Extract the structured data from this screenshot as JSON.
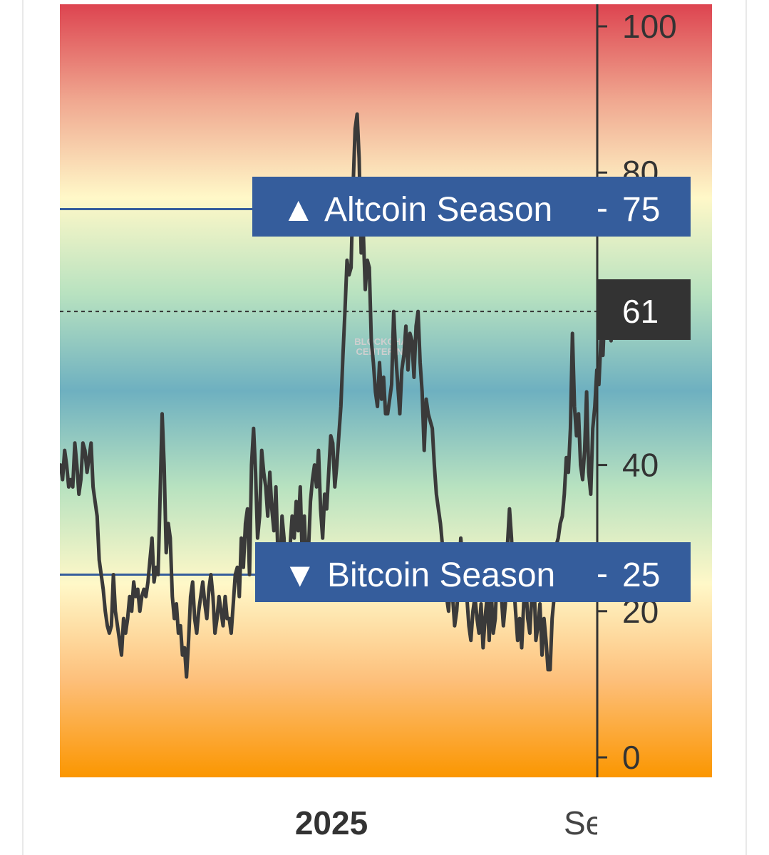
{
  "chart_data": {
    "type": "line",
    "title": "",
    "xlabel": "",
    "ylabel": "",
    "ylim": [
      0,
      100
    ],
    "y_ticks": [
      0,
      20,
      40,
      80,
      100
    ],
    "x_tick_labels": [
      {
        "label": "2025",
        "bold": true
      },
      {
        "label": "Se",
        "bold": false
      }
    ],
    "grid": false,
    "current_value": 61,
    "watermark": [
      "BLOCKCHAIN",
      "CENTER.NET"
    ],
    "thresholds": [
      {
        "name": "Altcoin Season",
        "value": 75,
        "symbol": "▲",
        "separator": "-"
      },
      {
        "name": "Bitcoin Season",
        "value": 25,
        "symbol": "▼",
        "separator": "-"
      }
    ],
    "background_gradient": [
      "#dd4450",
      "#f0a890",
      "#fff8c8",
      "#b8e2c0",
      "#6eb0c0",
      "#b8e2c0",
      "#fff8c8",
      "#fdbf7a",
      "#fb9600"
    ],
    "colors": {
      "line": "#3a3a3a",
      "threshold": "#355d9c",
      "current_badge": "#333333",
      "axis": "#333333"
    },
    "series": [
      {
        "values": [
          40,
          38,
          42,
          40,
          37,
          38,
          37,
          43,
          40,
          36,
          38,
          43,
          42,
          39,
          41,
          43,
          37,
          35,
          33,
          27,
          25,
          23,
          20,
          18,
          17,
          18,
          25,
          20,
          18,
          16,
          14,
          19,
          17,
          19,
          22,
          20,
          24,
          22,
          23,
          20,
          22,
          23,
          22,
          24,
          27,
          30,
          24,
          26,
          25,
          36,
          47,
          40,
          28,
          32,
          30,
          22,
          19,
          21,
          17,
          18,
          14,
          15,
          11,
          16,
          22,
          24,
          19,
          17,
          20,
          22,
          24,
          21,
          19,
          23,
          25,
          22,
          17,
          19,
          22,
          20,
          18,
          22,
          19,
          19,
          17,
          21,
          25,
          26,
          22,
          30,
          26,
          32,
          34,
          25,
          40,
          45,
          39,
          30,
          33,
          42,
          39,
          37,
          33,
          39,
          34,
          31,
          37,
          28,
          25,
          33,
          30,
          22,
          27,
          29,
          33,
          30,
          35,
          31,
          37,
          27,
          33,
          26,
          28,
          35,
          38,
          40,
          37,
          42,
          34,
          30,
          36,
          34,
          39,
          44,
          43,
          37,
          40,
          44,
          48,
          55,
          61,
          68,
          66,
          67,
          78,
          86,
          88,
          82,
          69,
          72,
          64,
          68,
          67,
          57,
          54,
          50,
          48,
          54,
          49,
          52,
          47,
          47,
          49,
          51,
          61,
          55,
          51,
          47,
          53,
          55,
          59,
          53,
          58,
          57,
          52,
          59,
          61,
          54,
          50,
          42,
          49,
          47,
          46,
          45,
          40,
          36,
          34,
          32,
          29,
          24,
          22,
          20,
          25,
          22,
          18,
          20,
          24,
          30,
          27,
          25,
          22,
          18,
          16,
          20,
          22,
          19,
          17,
          21,
          15,
          19,
          22,
          16,
          23,
          17,
          19,
          26,
          29,
          22,
          18,
          21,
          29,
          34,
          30,
          24,
          20,
          16,
          19,
          15,
          21,
          24,
          19,
          17,
          22,
          25,
          16,
          18,
          21,
          14,
          19,
          16,
          12,
          12,
          19,
          22,
          29,
          30,
          32,
          33,
          36,
          41,
          39,
          45,
          58,
          48,
          44,
          47,
          40,
          38,
          42,
          50,
          39,
          36,
          45,
          48,
          53,
          51,
          57,
          55,
          62,
          59,
          61,
          57,
          61
        ],
        "x_start": 85,
        "x_step": 2.85
      }
    ]
  }
}
